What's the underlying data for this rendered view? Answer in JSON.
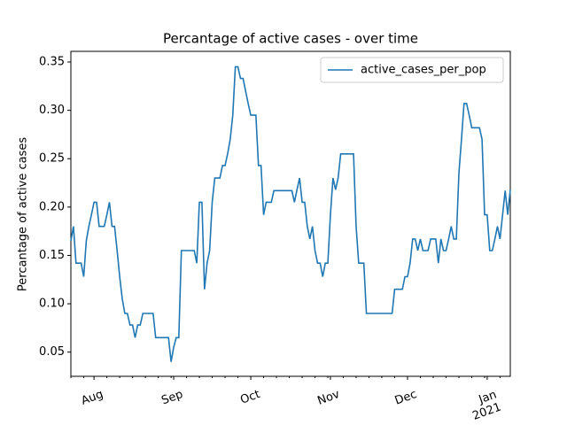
{
  "chart_data": {
    "type": "line",
    "title": "Percantage of active cases - over time",
    "y_label": "Percantage of active cases",
    "categories": [
      null,
      null,
      null,
      null,
      null,
      null,
      null,
      null,
      null,
      "Aug",
      null,
      null,
      null,
      null,
      null,
      null,
      null,
      null,
      null,
      null,
      null,
      null,
      null,
      null,
      null,
      null,
      null,
      null,
      null,
      null,
      null,
      null,
      null,
      null,
      null,
      null,
      null,
      null,
      null,
      null,
      "Sep",
      null,
      null,
      null,
      null,
      null,
      null,
      null,
      null,
      null,
      null,
      null,
      null,
      null,
      null,
      null,
      null,
      null,
      null,
      null,
      null,
      null,
      null,
      null,
      null,
      null,
      null,
      null,
      null,
      null,
      "Oct",
      null,
      null,
      null,
      null,
      null,
      null,
      null,
      null,
      null,
      null,
      null,
      null,
      null,
      null,
      null,
      null,
      null,
      null,
      null,
      null,
      null,
      null,
      null,
      null,
      null,
      null,
      null,
      null,
      null,
      null,
      "Nov",
      null,
      null,
      null,
      null,
      null,
      null,
      null,
      null,
      null,
      null,
      null,
      null,
      null,
      null,
      null,
      null,
      null,
      null,
      null,
      null,
      null,
      null,
      null,
      null,
      null,
      null,
      null,
      null,
      null,
      "Dec",
      null,
      null,
      null,
      null,
      null,
      null,
      null,
      null,
      null,
      null,
      null,
      null,
      null,
      null,
      null,
      null,
      null,
      null,
      null,
      null,
      null,
      null,
      null,
      null,
      null,
      null,
      null,
      null,
      null,
      null,
      "Jan\n2021",
      null,
      null,
      null,
      null,
      null,
      null,
      null,
      null,
      null
    ],
    "series": [
      {
        "name": "active_cases_per_pop",
        "color": "#1f77b4",
        "values": [
          0.165,
          0.18,
          0.142,
          0.142,
          0.142,
          0.128,
          0.165,
          0.18,
          0.192,
          0.205,
          0.205,
          0.18,
          0.18,
          0.18,
          0.192,
          0.205,
          0.18,
          0.18,
          0.155,
          0.128,
          0.105,
          0.09,
          0.09,
          0.078,
          0.078,
          0.065,
          0.078,
          0.078,
          0.09,
          0.09,
          0.09,
          0.09,
          0.09,
          0.065,
          0.065,
          0.065,
          0.065,
          0.065,
          0.065,
          0.04,
          0.055,
          0.065,
          0.065,
          0.155,
          0.155,
          0.155,
          0.155,
          0.155,
          0.155,
          0.142,
          0.205,
          0.205,
          0.115,
          0.142,
          0.155,
          0.205,
          0.23,
          0.23,
          0.23,
          0.243,
          0.243,
          0.255,
          0.27,
          0.295,
          0.345,
          0.345,
          0.333,
          0.333,
          0.32,
          0.307,
          0.295,
          0.295,
          0.295,
          0.243,
          0.243,
          0.192,
          0.205,
          0.205,
          0.205,
          0.217,
          0.217,
          0.217,
          0.217,
          0.217,
          0.217,
          0.217,
          0.217,
          0.205,
          0.218,
          0.23,
          0.205,
          0.205,
          0.18,
          0.167,
          0.18,
          0.155,
          0.142,
          0.142,
          0.128,
          0.142,
          0.142,
          0.192,
          0.23,
          0.218,
          0.23,
          0.255,
          0.255,
          0.255,
          0.255,
          0.255,
          0.255,
          0.18,
          0.142,
          0.142,
          0.142,
          0.09,
          0.09,
          0.09,
          0.09,
          0.09,
          0.09,
          0.09,
          0.09,
          0.09,
          0.09,
          0.09,
          0.115,
          0.115,
          0.115,
          0.115,
          0.128,
          0.128,
          0.142,
          0.167,
          0.167,
          0.155,
          0.167,
          0.155,
          0.155,
          0.155,
          0.167,
          0.167,
          0.167,
          0.142,
          0.167,
          0.155,
          0.155,
          0.167,
          0.18,
          0.167,
          0.167,
          0.235,
          0.27,
          0.307,
          0.307,
          0.295,
          0.282,
          0.282,
          0.282,
          0.282,
          0.27,
          0.192,
          0.192,
          0.155,
          0.155,
          0.167,
          0.18,
          0.167,
          0.192,
          0.217,
          0.192,
          0.218
        ]
      }
    ],
    "ylim": [
      0.025,
      0.361
    ],
    "yticks": [
      0.05,
      {
        "value": 0.1,
        "label": "0.10"
      },
      0.15,
      {
        "value": 0.2,
        "label": "0.20"
      },
      0.25,
      {
        "value": 0.3,
        "label": "0.30"
      },
      0.35
    ],
    "grid": false,
    "legend": "upper right"
  }
}
